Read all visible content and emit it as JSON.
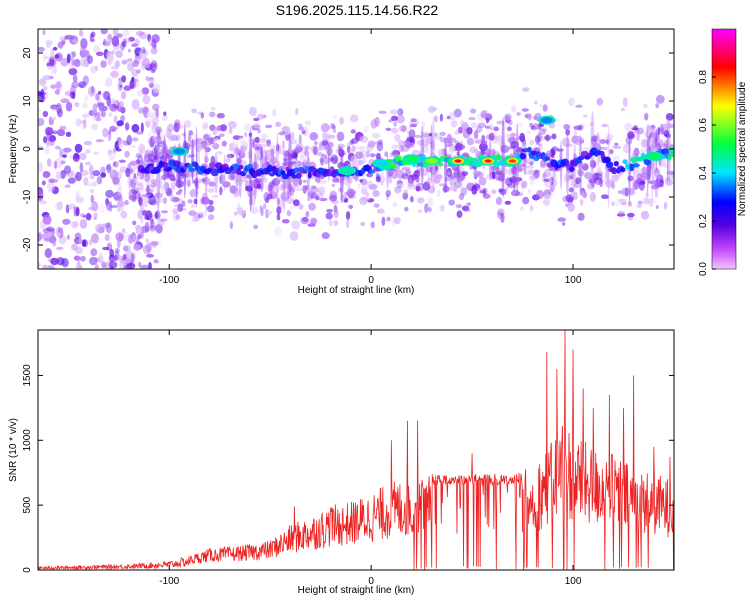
{
  "page": {
    "title": "S196.2025.115.14.56.R22"
  },
  "chart_data": [
    {
      "id": "spectrogram",
      "type": "heatmap",
      "xlabel": "Height of straight line (km)",
      "ylabel": "Frequency (Hz)",
      "xlim": [
        -165,
        150
      ],
      "ylim": [
        -25,
        25
      ],
      "xticks": [
        -100,
        0,
        100
      ],
      "yticks": [
        -20,
        -10,
        0,
        10,
        20
      ],
      "grid": false,
      "colorbar": {
        "label": "Normalized spectral amplitude",
        "range": [
          0.0,
          1.0
        ],
        "ticks": [
          0.0,
          0.2,
          0.4,
          0.6,
          0.8
        ],
        "colormap": "rainbow (magenta-blue-cyan-green-yellow-red-magenta)",
        "stops": [
          "#f0f0f0",
          "#e6b3ff",
          "#8a2be2",
          "#4b00d6",
          "#0000ff",
          "#00e5ff",
          "#00ff40",
          "#ffff00",
          "#ff0000",
          "#ff00ff"
        ]
      },
      "ridge": {
        "description": "main spectral ridge",
        "points": [
          [
            -112,
            -4.5
          ],
          [
            -100,
            -3.5
          ],
          [
            -80,
            -4
          ],
          [
            -60,
            -4.5
          ],
          [
            -40,
            -5
          ],
          [
            -20,
            -4.5
          ],
          [
            -10,
            -5
          ],
          [
            0,
            -4
          ],
          [
            10,
            -3
          ],
          [
            20,
            -2.5
          ],
          [
            40,
            -2.5
          ],
          [
            60,
            -2.5
          ],
          [
            70,
            -2.5
          ],
          [
            78,
            -0.5
          ],
          [
            90,
            -3
          ],
          [
            100,
            -3.5
          ],
          [
            110,
            0
          ],
          [
            120,
            -4
          ],
          [
            130,
            -3
          ],
          [
            140,
            -1.5
          ],
          [
            150,
            -1
          ]
        ]
      },
      "peaks": [
        [
          43,
          -2.5,
          0.95
        ],
        [
          58,
          -2.5,
          0.92
        ],
        [
          70,
          -2.5,
          0.9
        ],
        [
          30,
          -2.5,
          0.6
        ],
        [
          20,
          -2,
          0.5
        ],
        [
          -12,
          -4.5,
          0.45
        ],
        [
          5,
          -3,
          0.4
        ],
        [
          140,
          -1.5,
          0.5
        ],
        [
          -95,
          -0.5,
          0.35
        ],
        [
          87,
          6,
          0.35
        ]
      ]
    },
    {
      "id": "snr",
      "type": "line",
      "xlabel": "Height of straight line (km)",
      "ylabel": "SNR (10 * v/v)",
      "xlim": [
        -165,
        150
      ],
      "ylim": [
        0,
        1850
      ],
      "xticks": [
        -100,
        0,
        100
      ],
      "yticks": [
        0,
        500,
        1000,
        1500
      ],
      "grid": false,
      "series": [
        {
          "color": "#ee2222",
          "envelope": [
            [
              -165,
              25
            ],
            [
              -120,
              45
            ],
            [
              -100,
              70
            ],
            [
              -90,
              110
            ],
            [
              -80,
              170
            ],
            [
              -70,
              180
            ],
            [
              -60,
              200
            ],
            [
              -50,
              230
            ],
            [
              -40,
              350
            ],
            [
              -30,
              420
            ],
            [
              -20,
              500
            ],
            [
              -10,
              530
            ],
            [
              0,
              600
            ],
            [
              10,
              680
            ],
            [
              20,
              720
            ],
            [
              30,
              740
            ],
            [
              40,
              740
            ],
            [
              50,
              740
            ],
            [
              60,
              740
            ],
            [
              70,
              750
            ],
            [
              80,
              800
            ],
            [
              90,
              1000
            ],
            [
              95,
              1200
            ],
            [
              100,
              1050
            ],
            [
              110,
              950
            ],
            [
              120,
              900
            ],
            [
              130,
              800
            ],
            [
              140,
              750
            ],
            [
              150,
              700
            ]
          ],
          "peaks": [
            [
              -38,
              490
            ],
            [
              -20,
              480
            ],
            [
              10,
              1000
            ],
            [
              18,
              1150
            ],
            [
              23,
              1150
            ],
            [
              50,
              900
            ],
            [
              87,
              1680
            ],
            [
              92,
              1550
            ],
            [
              96,
              1850
            ],
            [
              100,
              1700
            ],
            [
              105,
              1400
            ],
            [
              110,
              1250
            ],
            [
              118,
              1350
            ],
            [
              125,
              1250
            ],
            [
              130,
              1500
            ],
            [
              140,
              950
            ],
            [
              148,
              870
            ]
          ]
        }
      ]
    }
  ]
}
